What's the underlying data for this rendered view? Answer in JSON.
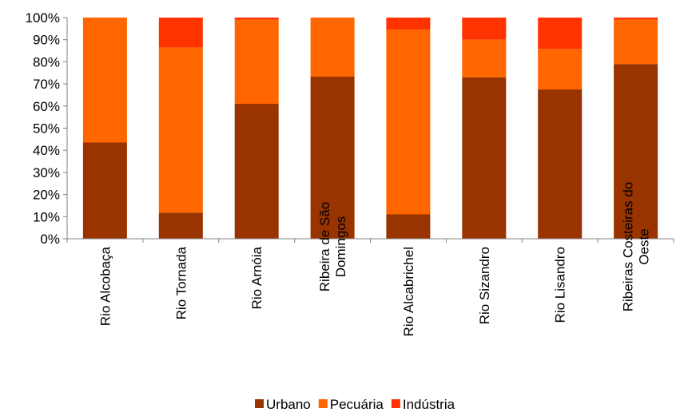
{
  "chart_data": {
    "type": "bar",
    "stacked": "percent",
    "categories": [
      [
        "Rio Alcobaça"
      ],
      [
        "Rio Tornada"
      ],
      [
        "Rio Arnóia"
      ],
      [
        "Ribeira de São",
        "Domingos"
      ],
      [
        "Rio Alcabrichel"
      ],
      [
        "Rio Sizandro"
      ],
      [
        "Rio Lisandro"
      ],
      [
        "Ribeiras Costeiras do",
        "Oeste"
      ]
    ],
    "series": [
      {
        "name": "Urbano",
        "color": "#993300",
        "values": [
          43.5,
          11.8,
          61.0,
          73.3,
          11.0,
          73.0,
          67.5,
          79.0
        ]
      },
      {
        "name": "Pecuária",
        "color": "#ff6600",
        "values": [
          56.5,
          74.7,
          38.0,
          26.7,
          83.5,
          17.0,
          18.3,
          20.0
        ]
      },
      {
        "name": "Indústria",
        "color": "#ff3300",
        "values": [
          0.0,
          13.5,
          1.0,
          0.0,
          5.5,
          10.0,
          14.2,
          1.0
        ]
      }
    ],
    "ylim": [
      0,
      100
    ],
    "yticks": [
      "0%",
      "10%",
      "20%",
      "30%",
      "40%",
      "50%",
      "60%",
      "70%",
      "80%",
      "90%",
      "100%"
    ],
    "legend_position": "bottom",
    "grid": false
  }
}
